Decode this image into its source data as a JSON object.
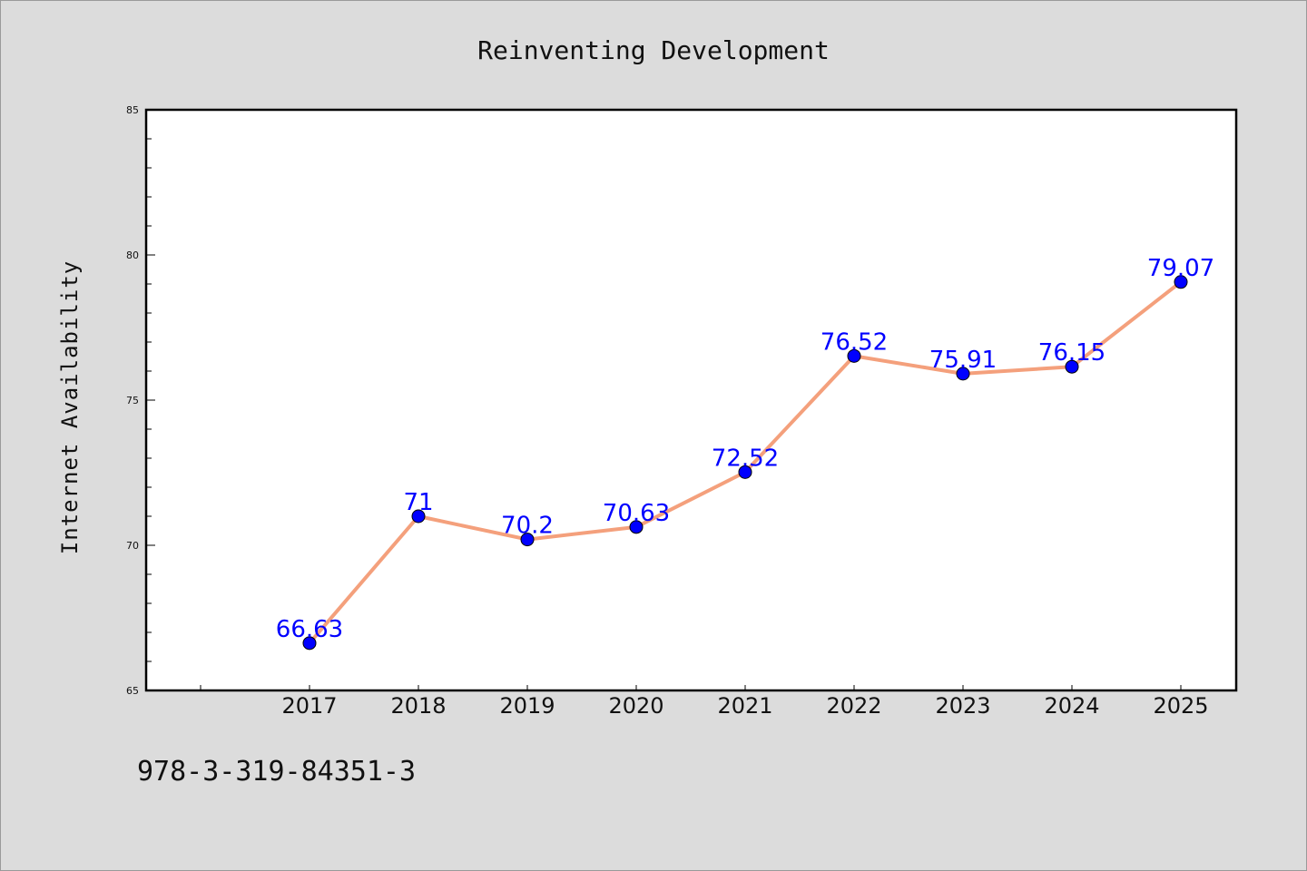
{
  "chart_data": {
    "type": "line",
    "title": "Reinventing Development",
    "xlabel": "",
    "ylabel": "Internet Availability",
    "categories": [
      "2017",
      "2018",
      "2019",
      "2020",
      "2021",
      "2022",
      "2023",
      "2024",
      "2025"
    ],
    "series": [
      {
        "values": [
          66.63,
          71,
          70.2,
          70.63,
          72.52,
          76.52,
          75.91,
          76.15,
          79.07
        ],
        "data_labels": [
          "66.63",
          "71",
          "70.2",
          "70.63",
          "72.52",
          "76.52",
          "75.91",
          "76.15",
          "79.07"
        ],
        "line_color": "#f4a07c",
        "marker_color": "#0000ff"
      }
    ],
    "ylim": [
      65,
      85
    ],
    "yticks": [
      "65",
      "70",
      "75",
      "80",
      "85"
    ],
    "grid": false,
    "legend": "none"
  },
  "footer": {
    "isbn": "978-3-319-84351-3"
  }
}
